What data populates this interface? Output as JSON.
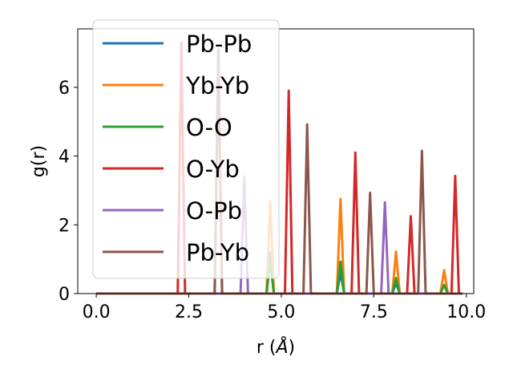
{
  "chart_data": {
    "type": "line",
    "xlabel": "r (",
    "xlabel_unit": "Å",
    "xlabel_close": ")",
    "ylabel": "g(r)",
    "xlim": [
      -0.5,
      10.2
    ],
    "ylim": [
      0,
      7.7
    ],
    "x_ticks": [
      0.0,
      2.5,
      5.0,
      7.5,
      10.0
    ],
    "x_tick_labels": [
      "0.0",
      "2.5",
      "5.0",
      "7.5",
      "10.0"
    ],
    "y_ticks": [
      0,
      2,
      4,
      6
    ],
    "y_tick_labels": [
      "0",
      "2",
      "4",
      "6"
    ],
    "x_range": [
      0.0,
      9.9
    ],
    "peak_halfwidth": 0.1,
    "legend_position": "upper-left",
    "series": [
      {
        "name": "Pb-Pb",
        "color": "#1f77b4",
        "peaks": [
          [
            3.3,
            7.1
          ],
          [
            4.7,
            1.2
          ],
          [
            6.6,
            0.6
          ],
          [
            8.1,
            0.3
          ]
        ]
      },
      {
        "name": "Yb-Yb",
        "color": "#ff7f0e",
        "peaks": [
          [
            3.3,
            6.9
          ],
          [
            4.7,
            2.7
          ],
          [
            6.6,
            2.75
          ],
          [
            8.1,
            1.22
          ],
          [
            9.4,
            0.68
          ]
        ]
      },
      {
        "name": "O-O",
        "color": "#2ca02c",
        "peaks": [
          [
            4.7,
            0.95
          ],
          [
            6.6,
            0.93
          ],
          [
            8.1,
            0.45
          ],
          [
            9.4,
            0.25
          ]
        ]
      },
      {
        "name": "O-Yb",
        "color": "#d62728",
        "peaks": [
          [
            2.3,
            7.3
          ],
          [
            5.2,
            5.9
          ],
          [
            7.0,
            4.1
          ],
          [
            8.5,
            2.25
          ],
          [
            9.7,
            3.42
          ]
        ]
      },
      {
        "name": "O-Pb",
        "color": "#9467bd",
        "peaks": [
          [
            4.0,
            3.4
          ],
          [
            7.8,
            2.65
          ]
        ]
      },
      {
        "name": "Pb-Yb",
        "color": "#8c564b",
        "peaks": [
          [
            3.3,
            7.05
          ],
          [
            5.7,
            4.92
          ],
          [
            7.4,
            2.93
          ],
          [
            8.8,
            4.15
          ]
        ]
      }
    ]
  }
}
